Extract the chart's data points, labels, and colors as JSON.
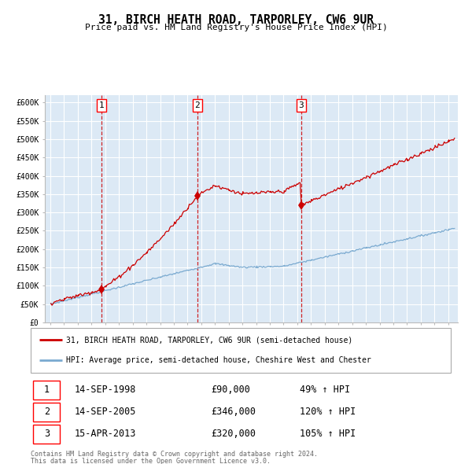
{
  "title1": "31, BIRCH HEATH ROAD, TARPORLEY, CW6 9UR",
  "title2": "Price paid vs. HM Land Registry's House Price Index (HPI)",
  "ylabel_ticks": [
    "£0",
    "£50K",
    "£100K",
    "£150K",
    "£200K",
    "£250K",
    "£300K",
    "£350K",
    "£400K",
    "£450K",
    "£500K",
    "£550K",
    "£600K"
  ],
  "ylabel_values": [
    0,
    50000,
    100000,
    150000,
    200000,
    250000,
    300000,
    350000,
    400000,
    450000,
    500000,
    550000,
    600000
  ],
  "ylim": [
    0,
    620000
  ],
  "background_color": "#dce9f5",
  "grid_color": "#ffffff",
  "red_line_color": "#cc0000",
  "blue_line_color": "#7aaad0",
  "dashed_color": "#cc0000",
  "sale_years": [
    1998.71,
    2005.71,
    2013.29
  ],
  "sale_prices": [
    90000,
    346000,
    320000
  ],
  "sale_labels": [
    "1",
    "2",
    "3"
  ],
  "sale_dates": [
    "14-SEP-1998",
    "14-SEP-2005",
    "15-APR-2013"
  ],
  "sale_prices_str": [
    "£90,000",
    "£346,000",
    "£320,000"
  ],
  "sale_pcts": [
    "49% ↑ HPI",
    "120% ↑ HPI",
    "105% ↑ HPI"
  ],
  "legend_line1": "31, BIRCH HEATH ROAD, TARPORLEY, CW6 9UR (semi-detached house)",
  "legend_line2": "HPI: Average price, semi-detached house, Cheshire West and Chester",
  "footer1": "Contains HM Land Registry data © Crown copyright and database right 2024.",
  "footer2": "This data is licensed under the Open Government Licence v3.0.",
  "xstart": 1995,
  "xend": 2024
}
